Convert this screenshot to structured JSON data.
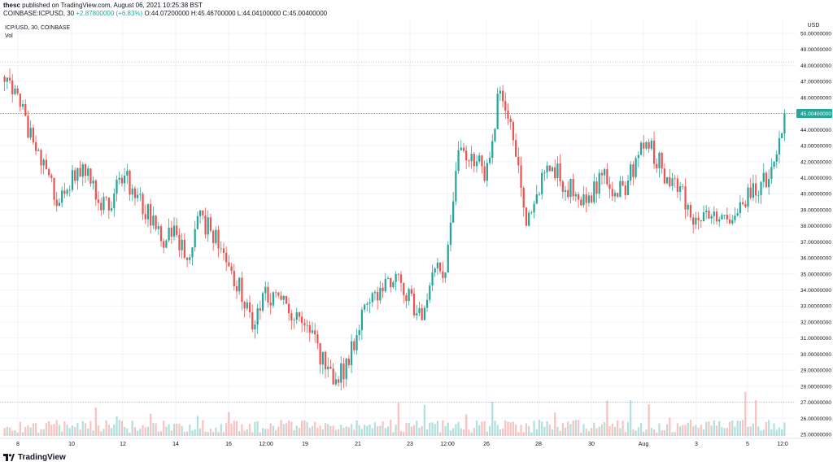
{
  "header": {
    "author": "thesc",
    "published": "published on TradingView.com, August 06, 2021 10:25:38 BST",
    "symbol": "COINBASE:ICPUSD, 30",
    "change": "+2.87800000 (+6.83%)",
    "ohlc": "O:44.07200000 H:45.46700000 L:44.04100000 C:45.00400000"
  },
  "legend": {
    "title": "ICP/USD, 30, COINBASE",
    "vol": "Vol"
  },
  "footer": {
    "brand": "TradingView",
    "logo_icon": "tradingview-logo-icon"
  },
  "colors": {
    "up": "#26a69a",
    "down": "#ef5350",
    "grid": "#f0f3fa",
    "last_price": "#26a69a"
  },
  "chart_data": {
    "type": "candlestick",
    "title": "ICP/USD, 30, COINBASE",
    "ylabel": "USD",
    "ylim": [
      25,
      50.5
    ],
    "grid": true,
    "y_ticks": [
      "50.00000000",
      "49.00000000",
      "48.00000000",
      "47.00000000",
      "46.00000000",
      "45.00000000",
      "44.00000000",
      "43.00000000",
      "42.00000000",
      "41.00000000",
      "40.00000000",
      "39.00000000",
      "38.00000000",
      "37.00000000",
      "36.00000000",
      "35.00000000",
      "34.00000000",
      "33.00000000",
      "32.00000000",
      "31.00000000",
      "30.00000000",
      "29.00000000",
      "28.00000000",
      "27.00000000",
      "26.00000000",
      "25.00000000"
    ],
    "x_ticks": [
      "8",
      "10",
      "12",
      "14",
      "16",
      "12:00",
      "19",
      "21",
      "23",
      "12:00",
      "26",
      "28",
      "30",
      "Aug",
      "3",
      "5",
      "12:0"
    ],
    "last_price": 45.004,
    "last_price_label": "45.00400000",
    "max_line": 48.2,
    "min_line": 27.0,
    "close_path": [
      {
        "x": 0,
        "y": 47.3
      },
      {
        "x": 0.5,
        "y": 46.2
      },
      {
        "x": 1.0,
        "y": 43.5
      },
      {
        "x": 1.5,
        "y": 41.5
      },
      {
        "x": 2.0,
        "y": 39.8
      },
      {
        "x": 2.5,
        "y": 40.8
      },
      {
        "x": 3.0,
        "y": 41.8
      },
      {
        "x": 3.5,
        "y": 39.8
      },
      {
        "x": 4.0,
        "y": 39.2
      },
      {
        "x": 4.5,
        "y": 41.3
      },
      {
        "x": 5.0,
        "y": 40.1
      },
      {
        "x": 5.5,
        "y": 38.8
      },
      {
        "x": 6.0,
        "y": 37.0
      },
      {
        "x": 6.5,
        "y": 38.0
      },
      {
        "x": 7.0,
        "y": 36.0
      },
      {
        "x": 7.5,
        "y": 38.5
      },
      {
        "x": 8.0,
        "y": 37.6
      },
      {
        "x": 8.5,
        "y": 35.8
      },
      {
        "x": 9.0,
        "y": 34.2
      },
      {
        "x": 9.5,
        "y": 32.0
      },
      {
        "x": 10.0,
        "y": 33.5
      },
      {
        "x": 10.5,
        "y": 34.0
      },
      {
        "x": 11.0,
        "y": 32.5
      },
      {
        "x": 11.5,
        "y": 31.8
      },
      {
        "x": 12.0,
        "y": 30.5
      },
      {
        "x": 12.5,
        "y": 28.6
      },
      {
        "x": 13.0,
        "y": 28.8
      },
      {
        "x": 13.5,
        "y": 31.2
      },
      {
        "x": 14.0,
        "y": 33.5
      },
      {
        "x": 14.5,
        "y": 34.2
      },
      {
        "x": 15.0,
        "y": 34.5
      },
      {
        "x": 15.5,
        "y": 33.8
      },
      {
        "x": 16.0,
        "y": 32.4
      },
      {
        "x": 16.5,
        "y": 35.0
      },
      {
        "x": 17.0,
        "y": 35.5
      },
      {
        "x": 17.5,
        "y": 43.0
      },
      {
        "x": 18.0,
        "y": 42.5
      },
      {
        "x": 18.5,
        "y": 41.2
      },
      {
        "x": 19.0,
        "y": 46.0
      },
      {
        "x": 19.5,
        "y": 44.5
      },
      {
        "x": 20.0,
        "y": 38.5
      },
      {
        "x": 20.5,
        "y": 40.0
      },
      {
        "x": 21.0,
        "y": 42.0
      },
      {
        "x": 21.5,
        "y": 40.5
      },
      {
        "x": 22.0,
        "y": 40.0
      },
      {
        "x": 22.5,
        "y": 39.5
      },
      {
        "x": 23.0,
        "y": 41.5
      },
      {
        "x": 23.5,
        "y": 40.0
      },
      {
        "x": 24.0,
        "y": 40.8
      },
      {
        "x": 24.5,
        "y": 43.2
      },
      {
        "x": 25.0,
        "y": 42.5
      },
      {
        "x": 25.5,
        "y": 40.8
      },
      {
        "x": 26.0,
        "y": 40.2
      },
      {
        "x": 26.5,
        "y": 38.5
      },
      {
        "x": 27.0,
        "y": 38.8
      },
      {
        "x": 27.5,
        "y": 39.0
      },
      {
        "x": 28.0,
        "y": 38.7
      },
      {
        "x": 28.5,
        "y": 39.8
      },
      {
        "x": 29.0,
        "y": 40.2
      },
      {
        "x": 29.5,
        "y": 41.5
      },
      {
        "x": 29.8,
        "y": 42.8
      },
      {
        "x": 30.0,
        "y": 45.004
      }
    ]
  }
}
